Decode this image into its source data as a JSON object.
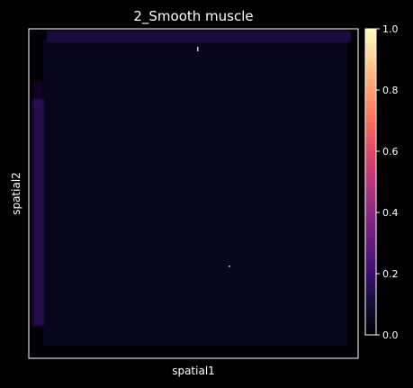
{
  "chart_data": {
    "type": "heatmap",
    "title": "2_Smooth muscle",
    "xlabel": "spatial1",
    "ylabel": "spatial2",
    "colormap": "magma",
    "colorbar": {
      "vmin": 0.0,
      "vmax": 1.0,
      "ticks": [
        0.0,
        0.2,
        0.4,
        0.6,
        0.8,
        1.0
      ],
      "tick_labels": [
        "0.0",
        "0.2",
        "0.4",
        "0.6",
        "0.8",
        "1.0"
      ],
      "placement": "right"
    },
    "grid": false,
    "typical_value": 0.03,
    "edge_values": {
      "top_band": 0.16,
      "left_band": 0.2
    }
  },
  "colors": {
    "background": "#000000",
    "axes_edge": "#ffffff",
    "text": "#ffffff",
    "magma_stops": [
      "#000004",
      "#140e36",
      "#3b0f70",
      "#641a80",
      "#8c2981",
      "#b73779",
      "#de4968",
      "#f7705c",
      "#fe9f6d",
      "#fecf92",
      "#fcfdbf"
    ]
  }
}
